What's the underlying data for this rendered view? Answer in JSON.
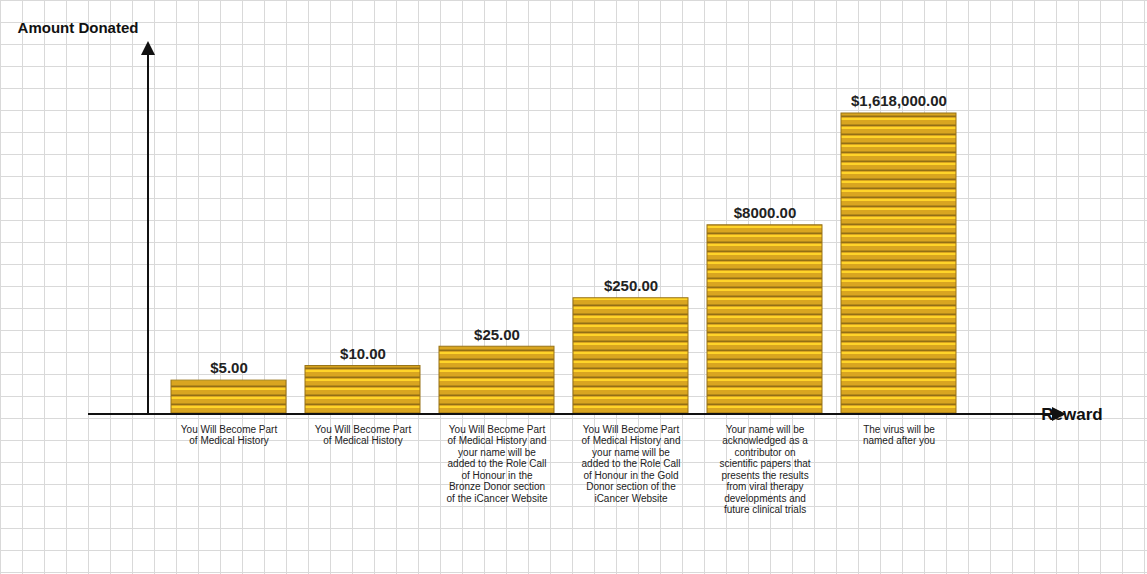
{
  "chart_data": {
    "type": "bar",
    "categories": [
      "You Will Become Part of Medical History",
      "You Will Become Part of Medical History",
      "You Will Become Part of Medical History and your name will be added to the Role Call of Honour in the Bronze Donor section of the iCancer Website",
      "You Will Become Part of Medical History and your name will be added to the Role Call of Honour in the Gold Donor section of the iCancer Website",
      "Your name will be acknowledged as a contributor on scientific papers that presents the results from viral therapy developments and future clinical trials",
      "The virus will be named after you"
    ],
    "values": [
      5,
      10,
      25,
      250,
      8000,
      1618000
    ],
    "value_labels": [
      "$5.00",
      "$10.00",
      "$25.00",
      "$250.00",
      "$8000.00",
      "$1,618,000.00"
    ],
    "data_labels": true,
    "color": "#d9a520",
    "log": "y",
    "ylim": [
      1,
      3000000
    ],
    "tick_labels": "x",
    "x_label": "Reward",
    "y_label": "Amount Donated",
    "grid": true
  }
}
